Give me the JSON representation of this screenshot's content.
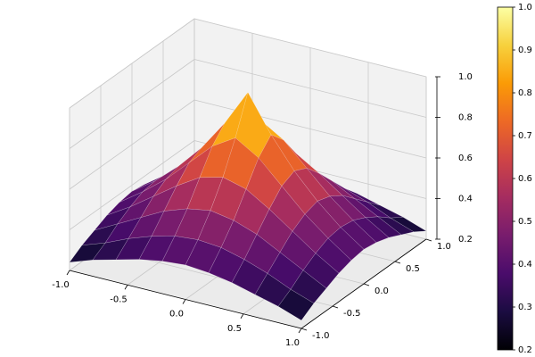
{
  "chart_data": {
    "type": "surface",
    "x": [
      -1,
      -0.8,
      -0.6,
      -0.4,
      -0.2,
      0,
      0.2,
      0.4,
      0.6,
      0.8,
      1
    ],
    "y": [
      -1,
      -0.8,
      -0.6,
      -0.4,
      -0.2,
      0,
      0.2,
      0.4,
      0.6,
      0.8,
      1
    ],
    "z": [
      [
        0.24,
        0.28,
        0.31,
        0.34,
        0.36,
        0.37,
        0.36,
        0.34,
        0.31,
        0.28,
        0.24
      ],
      [
        0.28,
        0.32,
        0.37,
        0.41,
        0.44,
        0.45,
        0.44,
        0.41,
        0.37,
        0.32,
        0.28
      ],
      [
        0.31,
        0.37,
        0.43,
        0.49,
        0.53,
        0.55,
        0.53,
        0.49,
        0.43,
        0.37,
        0.31
      ],
      [
        0.34,
        0.41,
        0.49,
        0.57,
        0.64,
        0.67,
        0.64,
        0.57,
        0.49,
        0.41,
        0.34
      ],
      [
        0.36,
        0.44,
        0.53,
        0.64,
        0.75,
        0.82,
        0.75,
        0.64,
        0.53,
        0.44,
        0.36
      ],
      [
        0.37,
        0.45,
        0.55,
        0.67,
        0.82,
        1,
        0.82,
        0.67,
        0.55,
        0.45,
        0.37
      ],
      [
        0.36,
        0.44,
        0.53,
        0.64,
        0.75,
        0.82,
        0.75,
        0.64,
        0.53,
        0.44,
        0.36
      ],
      [
        0.34,
        0.41,
        0.49,
        0.57,
        0.64,
        0.67,
        0.64,
        0.57,
        0.49,
        0.41,
        0.34
      ],
      [
        0.31,
        0.37,
        0.43,
        0.49,
        0.53,
        0.55,
        0.53,
        0.49,
        0.43,
        0.37,
        0.31
      ],
      [
        0.28,
        0.32,
        0.37,
        0.41,
        0.44,
        0.45,
        0.44,
        0.41,
        0.37,
        0.32,
        0.28
      ],
      [
        0.24,
        0.28,
        0.31,
        0.34,
        0.36,
        0.37,
        0.36,
        0.34,
        0.31,
        0.28,
        0.24
      ]
    ],
    "xlim": [
      -1,
      1
    ],
    "ylim": [
      -1,
      1
    ],
    "zlim": [
      0.2,
      1
    ],
    "xticks": [
      {
        "value": -1,
        "label": "-1.0"
      },
      -0.5,
      {
        "value": 0,
        "label": "0.0"
      },
      0.5,
      {
        "value": 1,
        "label": "1.0"
      }
    ],
    "yticks": [
      {
        "value": -1,
        "label": "-1.0"
      },
      -0.5,
      {
        "value": 0,
        "label": "0.0"
      },
      0.5,
      {
        "value": 1,
        "label": "1.0"
      }
    ],
    "zticks": [
      0.2,
      0.4,
      0.6,
      0.8,
      {
        "value": 1,
        "label": "1.0"
      }
    ],
    "colorbar_ticks": [
      0.2,
      0.3,
      0.4,
      0.5,
      0.6,
      0.7,
      0.8,
      0.9,
      {
        "value": 1,
        "label": "1.0"
      }
    ],
    "colormap": [
      "#000004",
      "#1b0c41",
      "#4a0c6b",
      "#781c6d",
      "#a52c60",
      "#cf4446",
      "#ed6925",
      "#fb9b06",
      "#f7d13d",
      "#fcffa4"
    ],
    "grid": true
  }
}
